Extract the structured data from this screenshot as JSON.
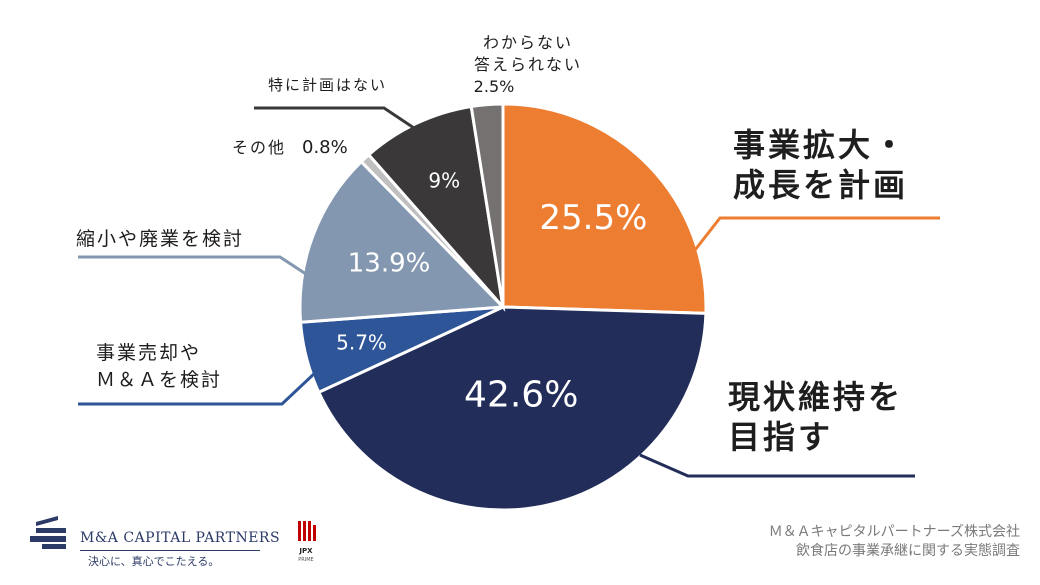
{
  "chart_data": {
    "type": "pie",
    "start_angle_deg": 0,
    "direction": "clockwise",
    "slices": [
      {
        "label_lines": [
          "事業拡大・",
          "成長を計画"
        ],
        "value": 25.5,
        "value_label": "25.5%",
        "color": "#ed7d31"
      },
      {
        "label_lines": [
          "現状維持を",
          "目指す"
        ],
        "value": 42.6,
        "value_label": "42.6%",
        "color": "#222d5a"
      },
      {
        "label_lines": [
          "事業売却や",
          "Ｍ＆Ａを検討"
        ],
        "value": 5.7,
        "value_label": "5.7%",
        "color": "#2d5597"
      },
      {
        "label_lines": [
          "縮小や廃業を検討"
        ],
        "value": 13.9,
        "value_label": "13.9%",
        "color": "#8497b0"
      },
      {
        "label_lines": [
          "その他"
        ],
        "value": 0.8,
        "value_label": "0.8%",
        "color": "#bfbfbf"
      },
      {
        "label_lines": [
          "特に計画はない"
        ],
        "value": 9,
        "value_label": "9%",
        "color": "#3a3838"
      },
      {
        "label_lines": [
          "わからない",
          "答えられない"
        ],
        "value": 2.5,
        "value_label": "2.5%",
        "color": "#767171"
      }
    ]
  },
  "footer": {
    "source_line1": "Ｍ＆Ａキャピタルパートナーズ株式会社",
    "source_line2": "飲食店の事業承継に関する実態調査",
    "logo_name": "M&A CAPITAL PARTNERS",
    "logo_tagline": "決心に、真心でこたえる。",
    "exchange_badge": "JPX",
    "exchange_sub": "PRIME"
  }
}
